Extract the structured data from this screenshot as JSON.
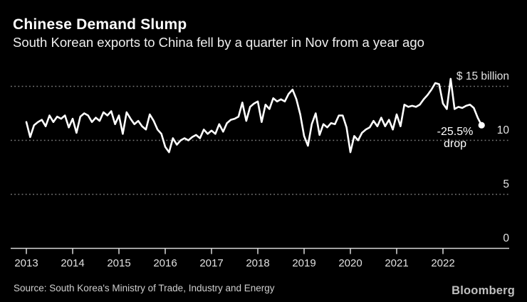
{
  "header": {
    "title": "Chinese Demand Slump",
    "subtitle": "South Korean exports to China fell by a quarter in Nov from a year ago"
  },
  "annotation": {
    "percent": "-25.5%",
    "label": "drop"
  },
  "footer": {
    "source": "Source: South Korea's Ministry of Trade, Industry and Energy",
    "brand": "Bloomberg"
  },
  "chart_data": {
    "type": "line",
    "title": "Chinese Demand Slump",
    "subtitle": "South Korean exports to China fell by a quarter in Nov from a year ago",
    "unit": "$ billion",
    "x_monthly_start": "2013-01",
    "x_monthly_end": "2022-11",
    "years": [
      "2013",
      "2014",
      "2015",
      "2016",
      "2017",
      "2018",
      "2019",
      "2020",
      "2021",
      "2022"
    ],
    "y_axis": {
      "labels": [
        "$ 15 billion",
        "10",
        "5",
        "0"
      ],
      "label_values": [
        15,
        10,
        5,
        0
      ],
      "gridline_values": [
        15,
        10,
        5
      ],
      "baseline_value": 0,
      "ylim": [
        0,
        16.6
      ],
      "grid": "dotted",
      "side": "right"
    },
    "series": [
      {
        "name": "South Korean exports to China, monthly ($ billion)",
        "values": [
          11.7,
          10.3,
          11.4,
          11.7,
          11.9,
          11.3,
          12.3,
          11.7,
          12.2,
          12.0,
          12.3,
          11.2,
          12.0,
          10.7,
          12.2,
          12.5,
          12.3,
          11.7,
          12.1,
          11.8,
          12.6,
          12.3,
          12.7,
          11.5,
          12.3,
          10.6,
          12.6,
          12.0,
          11.5,
          11.8,
          11.3,
          11.0,
          12.4,
          11.8,
          11.0,
          10.6,
          9.4,
          8.9,
          10.2,
          9.6,
          10.0,
          10.2,
          10.0,
          10.3,
          10.5,
          10.2,
          11.0,
          10.6,
          10.9,
          10.6,
          11.5,
          10.8,
          11.6,
          11.9,
          12.0,
          12.2,
          13.5,
          11.8,
          13.1,
          13.4,
          13.6,
          11.7,
          13.3,
          12.9,
          13.9,
          13.6,
          13.8,
          13.6,
          14.3,
          14.7,
          13.8,
          12.4,
          10.4,
          9.5,
          11.5,
          12.5,
          10.5,
          11.5,
          11.2,
          11.6,
          11.5,
          12.3,
          12.3,
          11.2,
          8.9,
          10.4,
          10.0,
          10.7,
          11.0,
          11.2,
          11.8,
          11.3,
          12.1,
          11.3,
          11.9,
          11.0,
          12.4,
          11.3,
          13.3,
          13.1,
          13.2,
          13.1,
          13.3,
          13.8,
          14.2,
          14.7,
          15.3,
          15.2,
          13.4,
          12.9,
          15.7,
          12.9,
          13.1,
          13.0,
          13.2,
          13.3,
          13.0,
          12.1,
          11.4
        ]
      }
    ],
    "last_point": {
      "x": "2022-11",
      "value": 11.4,
      "marker": "dot"
    },
    "annotation": {
      "text": "-25.5% drop",
      "attached_to": "last_point"
    },
    "legend": "none",
    "colors": {
      "background": "#000000",
      "line": "#ffffff",
      "gridline": "#787878",
      "axis": "#d9d9d9",
      "labels": "#e3e3e3"
    }
  }
}
